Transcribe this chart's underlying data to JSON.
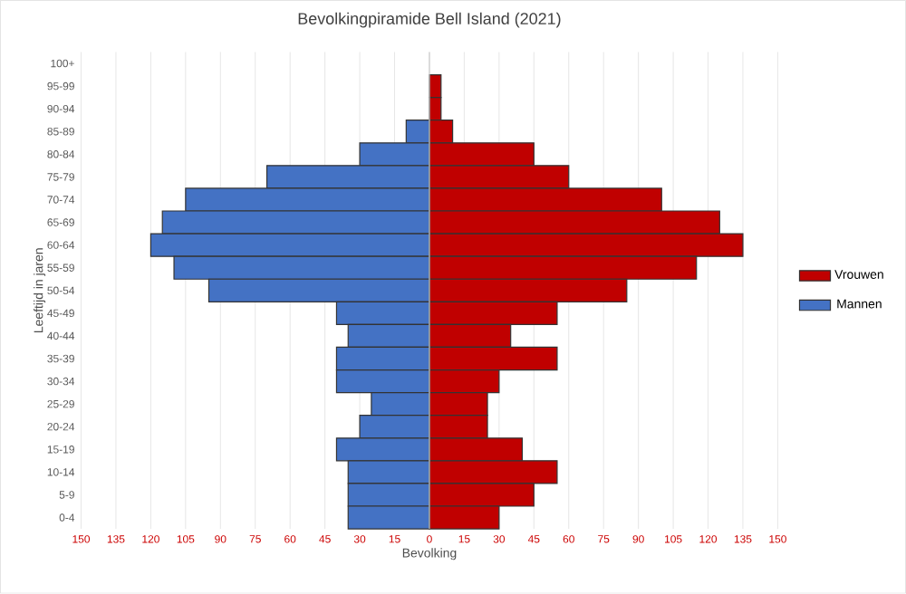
{
  "chart_data": {
    "type": "bar",
    "orientation": "horizontal",
    "title": "Bevolkingpiramide Bell Island (2021)",
    "xlabel": "Bevolking",
    "ylabel": "Leeftijd in jaren",
    "categories": [
      "100+",
      "95-99",
      "90-94",
      "85-89",
      "80-84",
      "75-79",
      "70-74",
      "65-69",
      "60-64",
      "55-59",
      "50-54",
      "45-49",
      "40-44",
      "35-39",
      "30-34",
      "25-29",
      "20-24",
      "15-19",
      "10-14",
      "5-9",
      "0-4"
    ],
    "series": [
      {
        "name": "Vrouwen",
        "color": "#c00000",
        "values": [
          0,
          5,
          5,
          10,
          45,
          60,
          100,
          125,
          135,
          115,
          85,
          55,
          35,
          55,
          30,
          25,
          25,
          40,
          55,
          45,
          30
        ]
      },
      {
        "name": "Mannen",
        "color": "#4472c4",
        "values": [
          0,
          0,
          0,
          -10,
          -30,
          -70,
          -105,
          -115,
          -120,
          -110,
          -95,
          -40,
          -35,
          -40,
          -40,
          -25,
          -30,
          -40,
          -35,
          -35,
          -35
        ]
      }
    ],
    "xlim": [
      -150,
      150
    ],
    "xticks": [
      {
        "value": -150,
        "label": "150"
      },
      {
        "value": -135,
        "label": "135"
      },
      {
        "value": -120,
        "label": "120"
      },
      {
        "value": -105,
        "label": "105"
      },
      {
        "value": -90,
        "label": "90"
      },
      {
        "value": -75,
        "label": "75"
      },
      {
        "value": -60,
        "label": "60"
      },
      {
        "value": -45,
        "label": "45"
      },
      {
        "value": -30,
        "label": "30"
      },
      {
        "value": -15,
        "label": "15"
      },
      0,
      15,
      30,
      45,
      60,
      75,
      90,
      105,
      120,
      135,
      150
    ],
    "stacked": true,
    "grid": "x",
    "legend": "right"
  }
}
